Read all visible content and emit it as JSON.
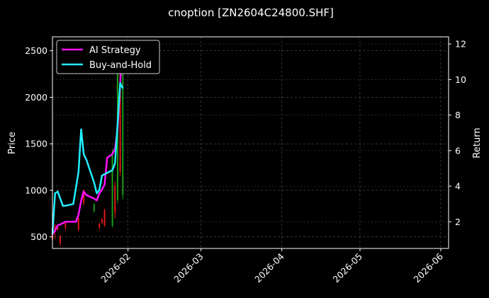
{
  "chart_data": {
    "type": "line",
    "title": "cnoption [ZN2604C24800.SHF]",
    "xlabel": "",
    "ylabel_left": "Price",
    "ylabel_right": "Return",
    "x_range": [
      "2026-01-03",
      "2026-06-04"
    ],
    "ylim_left": [
      375,
      2650
    ],
    "ylim_right": [
      0.5,
      12.4
    ],
    "x_ticks": [
      "2026-02",
      "2026-03",
      "2026-04",
      "2026-05",
      "2026-06"
    ],
    "y_ticks_left": [
      500,
      1000,
      1500,
      2000,
      2500
    ],
    "y_ticks_right": [
      2,
      4,
      6,
      8,
      10,
      12
    ],
    "grid": true,
    "legend_position": "top-left",
    "colors": {
      "background": "#000000",
      "axes": "#ffffff",
      "grid": "#555555",
      "ai_strategy": "#ff11ff",
      "buy_and_hold": "#22eeff",
      "up_candle": "#1a9e1a",
      "down_candle": "#e01818"
    },
    "series": [
      {
        "name": "AI Strategy",
        "axis": "right",
        "points": [
          [
            "2026-01-03",
            1.3
          ],
          [
            "2026-01-04",
            1.5
          ],
          [
            "2026-01-05",
            1.8
          ],
          [
            "2026-01-06",
            1.85
          ],
          [
            "2026-01-08",
            2.0
          ],
          [
            "2026-01-12",
            2.0
          ],
          [
            "2026-01-13",
            2.4
          ],
          [
            "2026-01-14",
            3.2
          ],
          [
            "2026-01-15",
            3.7
          ],
          [
            "2026-01-16",
            3.5
          ],
          [
            "2026-01-19",
            3.3
          ],
          [
            "2026-01-20",
            3.2
          ],
          [
            "2026-01-21",
            3.6
          ],
          [
            "2026-01-22",
            3.8
          ],
          [
            "2026-01-23",
            4.1
          ],
          [
            "2026-01-24",
            5.6
          ],
          [
            "2026-01-26",
            5.8
          ],
          [
            "2026-01-27",
            6.1
          ],
          [
            "2026-01-28",
            7.2
          ],
          [
            "2026-01-29",
            9.8
          ],
          [
            "2026-01-30",
            12.1
          ]
        ]
      },
      {
        "name": "Buy-and-Hold",
        "axis": "right",
        "points": [
          [
            "2026-01-03",
            1.3
          ],
          [
            "2026-01-04",
            3.6
          ],
          [
            "2026-01-05",
            3.7
          ],
          [
            "2026-01-07",
            2.9
          ],
          [
            "2026-01-08",
            2.9
          ],
          [
            "2026-01-11",
            3.0
          ],
          [
            "2026-01-13",
            4.8
          ],
          [
            "2026-01-14",
            7.2
          ],
          [
            "2026-01-15",
            5.8
          ],
          [
            "2026-01-16",
            5.5
          ],
          [
            "2026-01-19",
            4.2
          ],
          [
            "2026-01-20",
            3.6
          ],
          [
            "2026-01-21",
            3.8
          ],
          [
            "2026-01-22",
            4.6
          ],
          [
            "2026-01-26",
            4.9
          ],
          [
            "2026-01-27",
            5.3
          ],
          [
            "2026-01-28",
            7.5
          ],
          [
            "2026-01-29",
            9.8
          ],
          [
            "2026-01-30",
            9.5
          ]
        ]
      }
    ],
    "candles": [
      {
        "x": "2026-01-03",
        "low": 450,
        "high": 620,
        "open": 600,
        "close": 470
      },
      {
        "x": "2026-01-04",
        "low": 480,
        "high": 640,
        "open": 620,
        "close": 560
      },
      {
        "x": "2026-01-05",
        "low": 560,
        "high": 620,
        "open": 610,
        "close": 580
      },
      {
        "x": "2026-01-06",
        "low": 400,
        "high": 520,
        "open": 510,
        "close": 430
      },
      {
        "x": "2026-01-08",
        "low": 570,
        "high": 660,
        "open": 650,
        "close": 600
      },
      {
        "x": "2026-01-13",
        "low": 560,
        "high": 720,
        "open": 700,
        "close": 580
      },
      {
        "x": "2026-01-15",
        "low": 840,
        "high": 1010,
        "open": 1000,
        "close": 860
      },
      {
        "x": "2026-01-19",
        "low": 760,
        "high": 860,
        "open": 780,
        "close": 850
      },
      {
        "x": "2026-01-21",
        "low": 580,
        "high": 650,
        "open": 640,
        "close": 600
      },
      {
        "x": "2026-01-22",
        "low": 640,
        "high": 700,
        "open": 690,
        "close": 650
      },
      {
        "x": "2026-01-23",
        "low": 610,
        "high": 800,
        "open": 790,
        "close": 620
      },
      {
        "x": "2026-01-26",
        "low": 600,
        "high": 1450,
        "open": 620,
        "close": 1400
      },
      {
        "x": "2026-01-27",
        "low": 700,
        "high": 1100,
        "open": 1050,
        "close": 760
      },
      {
        "x": "2026-01-28",
        "low": 860,
        "high": 2400,
        "open": 900,
        "close": 2300
      },
      {
        "x": "2026-01-29",
        "low": 1150,
        "high": 2600,
        "open": 2500,
        "close": 1200
      },
      {
        "x": "2026-01-30",
        "low": 900,
        "high": 2300,
        "open": 950,
        "close": 2250
      }
    ]
  }
}
